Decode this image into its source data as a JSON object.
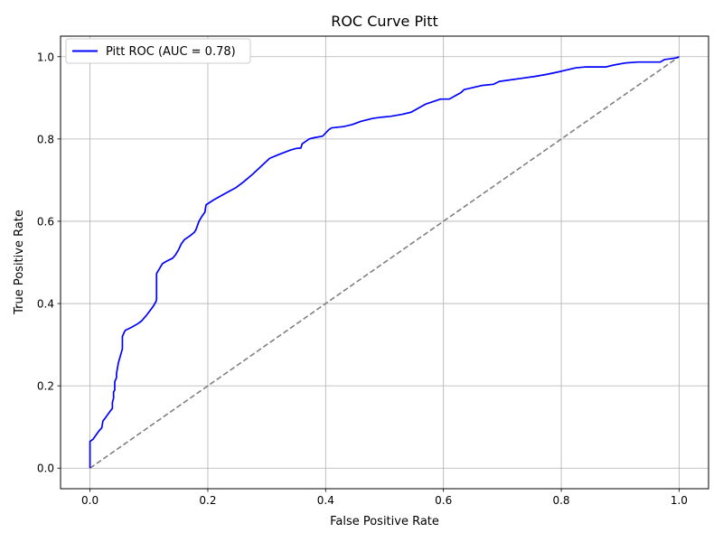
{
  "chart_data": {
    "type": "line",
    "title": "ROC Curve Pitt",
    "xlabel": "False Positive Rate",
    "ylabel": "True Positive Rate",
    "xlim": [
      -0.05,
      1.05
    ],
    "ylim": [
      -0.05,
      1.05
    ],
    "xticks": [
      0.0,
      0.2,
      0.4,
      0.6,
      0.8,
      1.0
    ],
    "xtick_labels": [
      "0.0",
      "0.2",
      "0.4",
      "0.6",
      "0.8",
      "1.0"
    ],
    "yticks": [
      0.0,
      0.2,
      0.4,
      0.6,
      0.8,
      1.0
    ],
    "ytick_labels": [
      "0.0",
      "0.2",
      "0.4",
      "0.6",
      "0.8",
      "1.0"
    ],
    "grid": true,
    "legend_position": "upper-left",
    "series": [
      {
        "name": "Pitt ROC (AUC = 0.78)",
        "color": "#0000ff",
        "style": "solid",
        "x": [
          0.0,
          0.0,
          0.0,
          0.005,
          0.01,
          0.015,
          0.02,
          0.022,
          0.025,
          0.03,
          0.035,
          0.038,
          0.038,
          0.04,
          0.04,
          0.042,
          0.042,
          0.045,
          0.045,
          0.048,
          0.05,
          0.053,
          0.055,
          0.055,
          0.058,
          0.06,
          0.07,
          0.08,
          0.087,
          0.095,
          0.103,
          0.108,
          0.112,
          0.113,
          0.113,
          0.118,
          0.123,
          0.13,
          0.14,
          0.145,
          0.15,
          0.155,
          0.16,
          0.17,
          0.177,
          0.18,
          0.185,
          0.19,
          0.195,
          0.197,
          0.21,
          0.23,
          0.248,
          0.26,
          0.275,
          0.29,
          0.305,
          0.32,
          0.34,
          0.35,
          0.358,
          0.36,
          0.367,
          0.372,
          0.38,
          0.395,
          0.405,
          0.41,
          0.43,
          0.445,
          0.46,
          0.48,
          0.495,
          0.51,
          0.53,
          0.545,
          0.555,
          0.57,
          0.585,
          0.595,
          0.61,
          0.62,
          0.63,
          0.635,
          0.65,
          0.665,
          0.685,
          0.695,
          0.71,
          0.73,
          0.755,
          0.775,
          0.795,
          0.81,
          0.825,
          0.84,
          0.86,
          0.875,
          0.89,
          0.91,
          0.93,
          0.95,
          0.968,
          0.975,
          0.985,
          0.995,
          1.0
        ],
        "y": [
          0.0,
          0.03,
          0.065,
          0.07,
          0.08,
          0.09,
          0.098,
          0.115,
          0.12,
          0.13,
          0.14,
          0.145,
          0.16,
          0.17,
          0.185,
          0.19,
          0.21,
          0.22,
          0.23,
          0.255,
          0.265,
          0.28,
          0.29,
          0.32,
          0.33,
          0.335,
          0.342,
          0.35,
          0.357,
          0.37,
          0.385,
          0.395,
          0.405,
          0.41,
          0.473,
          0.485,
          0.497,
          0.503,
          0.51,
          0.518,
          0.53,
          0.545,
          0.555,
          0.565,
          0.573,
          0.58,
          0.6,
          0.612,
          0.622,
          0.64,
          0.652,
          0.668,
          0.682,
          0.695,
          0.713,
          0.733,
          0.753,
          0.762,
          0.773,
          0.777,
          0.778,
          0.788,
          0.795,
          0.8,
          0.803,
          0.807,
          0.822,
          0.827,
          0.83,
          0.835,
          0.843,
          0.85,
          0.853,
          0.855,
          0.86,
          0.865,
          0.873,
          0.885,
          0.892,
          0.897,
          0.897,
          0.905,
          0.913,
          0.92,
          0.925,
          0.93,
          0.933,
          0.94,
          0.943,
          0.947,
          0.952,
          0.957,
          0.963,
          0.968,
          0.973,
          0.975,
          0.975,
          0.975,
          0.98,
          0.985,
          0.987,
          0.987,
          0.987,
          0.993,
          0.995,
          0.997,
          1.0
        ]
      },
      {
        "name": "",
        "color": "#808080",
        "style": "dashed",
        "x": [
          0.0,
          1.0
        ],
        "y": [
          0.0,
          1.0
        ]
      }
    ]
  }
}
